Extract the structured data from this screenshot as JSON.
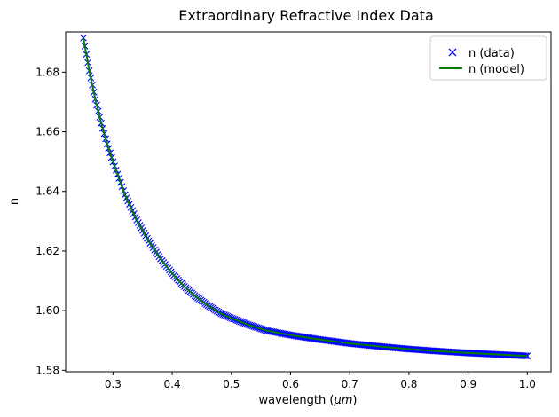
{
  "chart_data": {
    "type": "line",
    "title": "Extraordinary Refractive Index Data",
    "xlabel": "wavelength (",
    "xlabel_math": "μm",
    "xlabel_close": ")",
    "ylabel": "n",
    "xlim": [
      0.22,
      1.04
    ],
    "ylim": [
      1.5795,
      1.6935
    ],
    "xticks": [
      0.3,
      0.4,
      0.5,
      0.6,
      0.7,
      0.8,
      0.9,
      1.0
    ],
    "xtick_labels": [
      "0.3",
      "0.4",
      "0.5",
      "0.6",
      "0.7",
      "0.8",
      "0.9",
      "1.0"
    ],
    "yticks": [
      1.58,
      1.6,
      1.62,
      1.64,
      1.66,
      1.68
    ],
    "ytick_labels": [
      "1.58",
      "1.60",
      "1.62",
      "1.64",
      "1.66",
      "1.68"
    ],
    "grid": false,
    "legend_position": "top-right",
    "series": [
      {
        "name": "n (data)",
        "marker": "x",
        "color": "#0000ff",
        "x": [
          0.25,
          0.26,
          0.27,
          0.28,
          0.29,
          0.3,
          0.32,
          0.34,
          0.36,
          0.38,
          0.4,
          0.42,
          0.44,
          0.46,
          0.48,
          0.5,
          0.53,
          0.56,
          0.6,
          0.65,
          0.7,
          0.75,
          0.8,
          0.85,
          0.9,
          0.95,
          1.0
        ],
        "y": [
          1.6915,
          1.6805,
          1.671,
          1.663,
          1.656,
          1.65,
          1.639,
          1.6305,
          1.6235,
          1.6175,
          1.6125,
          1.6082,
          1.6047,
          1.6018,
          1.5993,
          1.5975,
          1.5952,
          1.5933,
          1.5918,
          1.5903,
          1.589,
          1.588,
          1.5871,
          1.5864,
          1.5858,
          1.5853,
          1.5848
        ]
      },
      {
        "name": "n (model)",
        "line": "solid",
        "color": "#008000",
        "x": [
          0.25,
          0.26,
          0.27,
          0.28,
          0.29,
          0.3,
          0.32,
          0.34,
          0.36,
          0.38,
          0.4,
          0.42,
          0.44,
          0.46,
          0.48,
          0.5,
          0.53,
          0.56,
          0.6,
          0.65,
          0.7,
          0.75,
          0.8,
          0.85,
          0.9,
          0.95,
          1.0
        ],
        "y": [
          1.6915,
          1.6805,
          1.671,
          1.663,
          1.656,
          1.65,
          1.639,
          1.6305,
          1.6235,
          1.6175,
          1.6125,
          1.6082,
          1.6047,
          1.6018,
          1.5993,
          1.5975,
          1.5952,
          1.5933,
          1.5918,
          1.5903,
          1.589,
          1.588,
          1.5871,
          1.5864,
          1.5858,
          1.5853,
          1.5848
        ]
      }
    ]
  }
}
